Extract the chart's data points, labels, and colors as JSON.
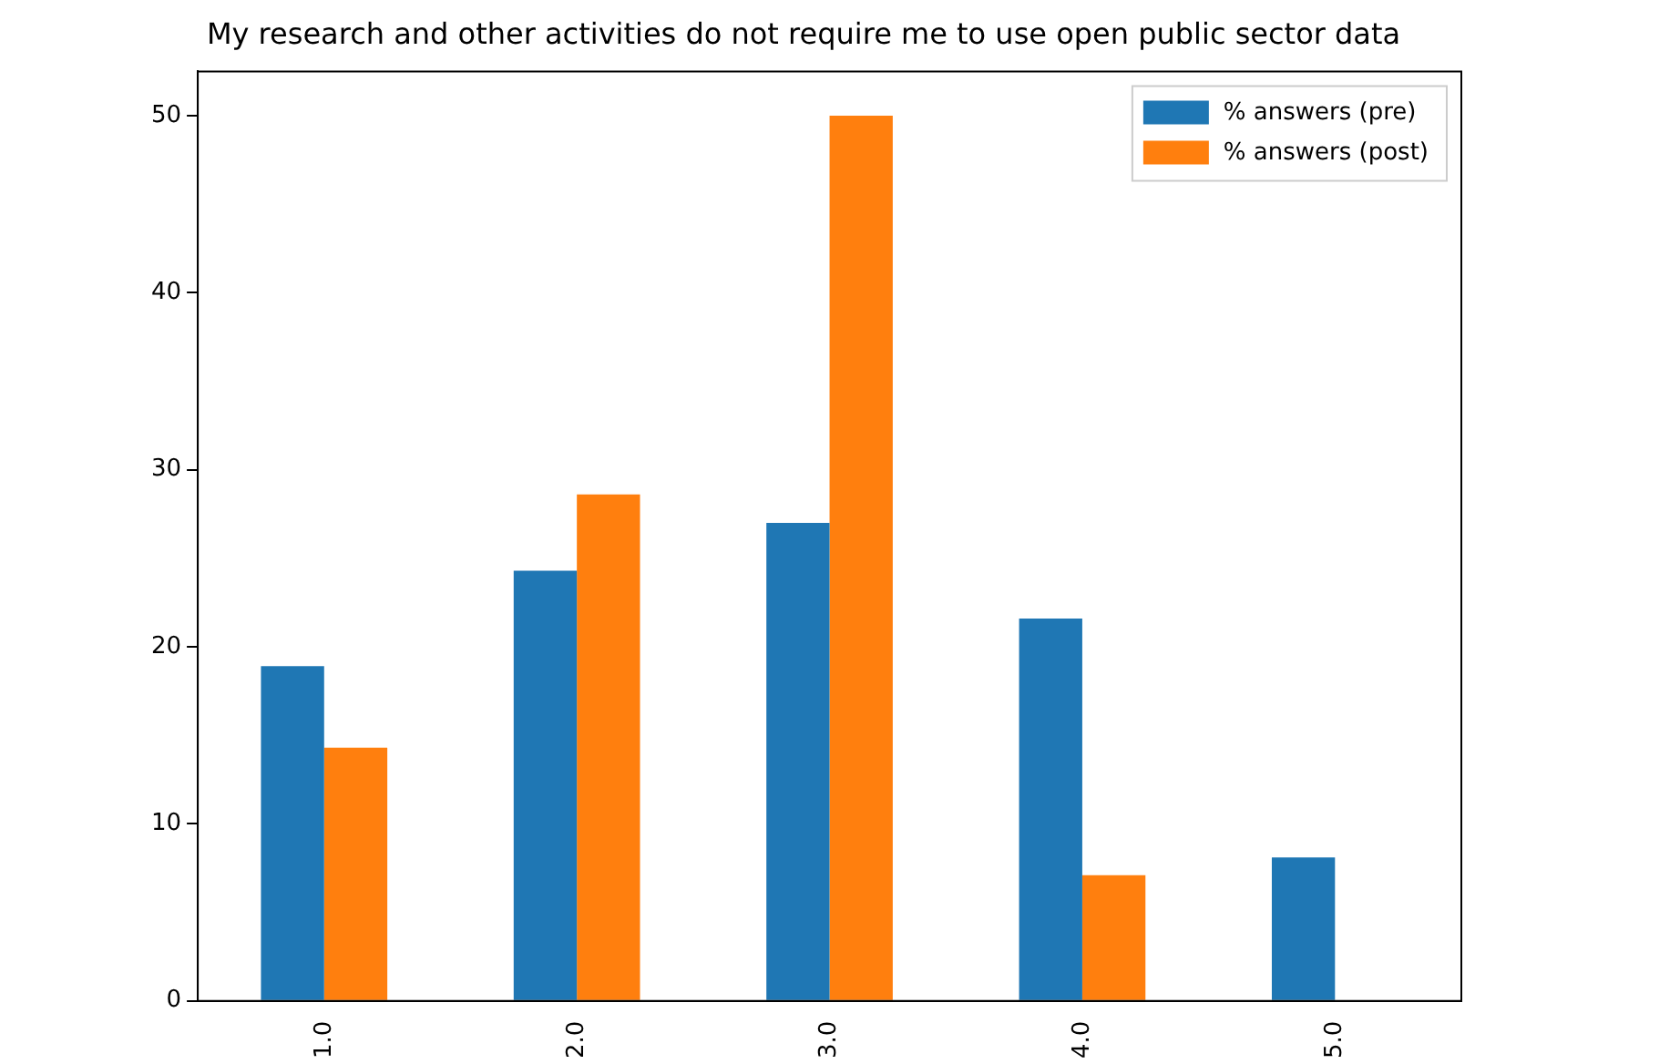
{
  "chart_data": {
    "type": "bar",
    "title": "My research and other activities do not require me to use open public sector data",
    "categories": [
      "1.0",
      "2.0",
      "3.0",
      "4.0",
      "5.0"
    ],
    "series": [
      {
        "name": "% answers (pre)",
        "color": "#1f77b4",
        "values": [
          18.9,
          24.3,
          27.0,
          21.6,
          8.1
        ]
      },
      {
        "name": "% answers (post)",
        "color": "#ff7f0e",
        "values": [
          14.3,
          28.6,
          50,
          7.1,
          0
        ]
      }
    ],
    "ylim": [
      0,
      52.5
    ],
    "yticks": [
      0,
      10,
      20,
      30,
      40,
      50
    ],
    "grid": false,
    "legend": "top right"
  }
}
